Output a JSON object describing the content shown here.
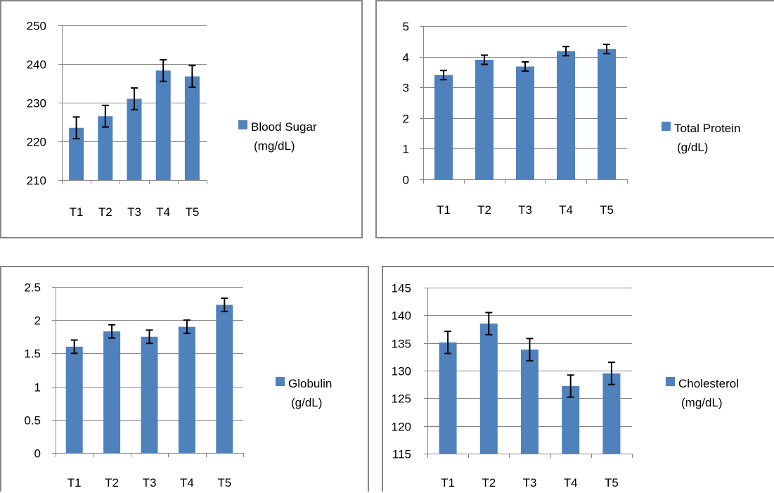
{
  "colors": {
    "bar": "#4f81bd",
    "grid": "#868686",
    "text": "#000000",
    "errorbar": "#000000"
  },
  "chart_data": [
    {
      "type": "bar",
      "categories": [
        "T1",
        "T2",
        "T3",
        "T4",
        "T5"
      ],
      "values": [
        223.5,
        226.5,
        231,
        238.3,
        236.8
      ],
      "errors": [
        2.8,
        2.8,
        2.8,
        2.8,
        2.8
      ],
      "ylim": [
        210,
        250
      ],
      "yticks": [
        210,
        220,
        230,
        240,
        250
      ],
      "tick_labels": [
        "210",
        "220",
        "230",
        "240",
        "250"
      ],
      "legend": {
        "line1": "Blood Sugar",
        "line2": "(mg/dL)",
        "position": "right"
      },
      "title": "",
      "xlabel": "",
      "ylabel": "",
      "grid": true
    },
    {
      "type": "bar",
      "categories": [
        "T1",
        "T2",
        "T3",
        "T4",
        "T5"
      ],
      "values": [
        3.4,
        3.9,
        3.68,
        4.18,
        4.25
      ],
      "errors": [
        0.15,
        0.15,
        0.15,
        0.15,
        0.15
      ],
      "ylim": [
        0,
        5
      ],
      "yticks": [
        0,
        1,
        2,
        3,
        4,
        5
      ],
      "tick_labels": [
        "0",
        "1",
        "2",
        "3",
        "4",
        "5"
      ],
      "legend": {
        "line1": "Total Protein",
        "line2": "(g/dL)",
        "position": "right"
      },
      "title": "",
      "xlabel": "",
      "ylabel": "",
      "grid": true
    },
    {
      "type": "bar",
      "categories": [
        "T1",
        "T2",
        "T3",
        "T4",
        "T5"
      ],
      "values": [
        1.6,
        1.83,
        1.75,
        1.9,
        2.23
      ],
      "errors": [
        0.1,
        0.1,
        0.1,
        0.1,
        0.1
      ],
      "ylim": [
        0,
        2.5
      ],
      "yticks": [
        0,
        0.5,
        1,
        1.5,
        2,
        2.5
      ],
      "tick_labels": [
        "0",
        "0.5",
        "1",
        "1.5",
        "2",
        "2.5"
      ],
      "legend": {
        "line1": "Globulin",
        "line2": "(g/dL)",
        "position": "right"
      },
      "title": "",
      "xlabel": "",
      "ylabel": "",
      "grid": true
    },
    {
      "type": "bar",
      "categories": [
        "T1",
        "T2",
        "T3",
        "T4",
        "T5"
      ],
      "values": [
        135.1,
        138.5,
        133.8,
        127.2,
        129.5
      ],
      "errors": [
        2,
        2,
        2,
        2,
        2
      ],
      "ylim": [
        115,
        145
      ],
      "yticks": [
        115,
        120,
        125,
        130,
        135,
        140,
        145
      ],
      "tick_labels": [
        "115",
        "120",
        "125",
        "130",
        "135",
        "140",
        "145"
      ],
      "legend": {
        "line1": "Cholesterol",
        "line2": "(mg/dL)",
        "position": "right"
      },
      "title": "",
      "xlabel": "",
      "ylabel": "",
      "grid": true
    }
  ]
}
